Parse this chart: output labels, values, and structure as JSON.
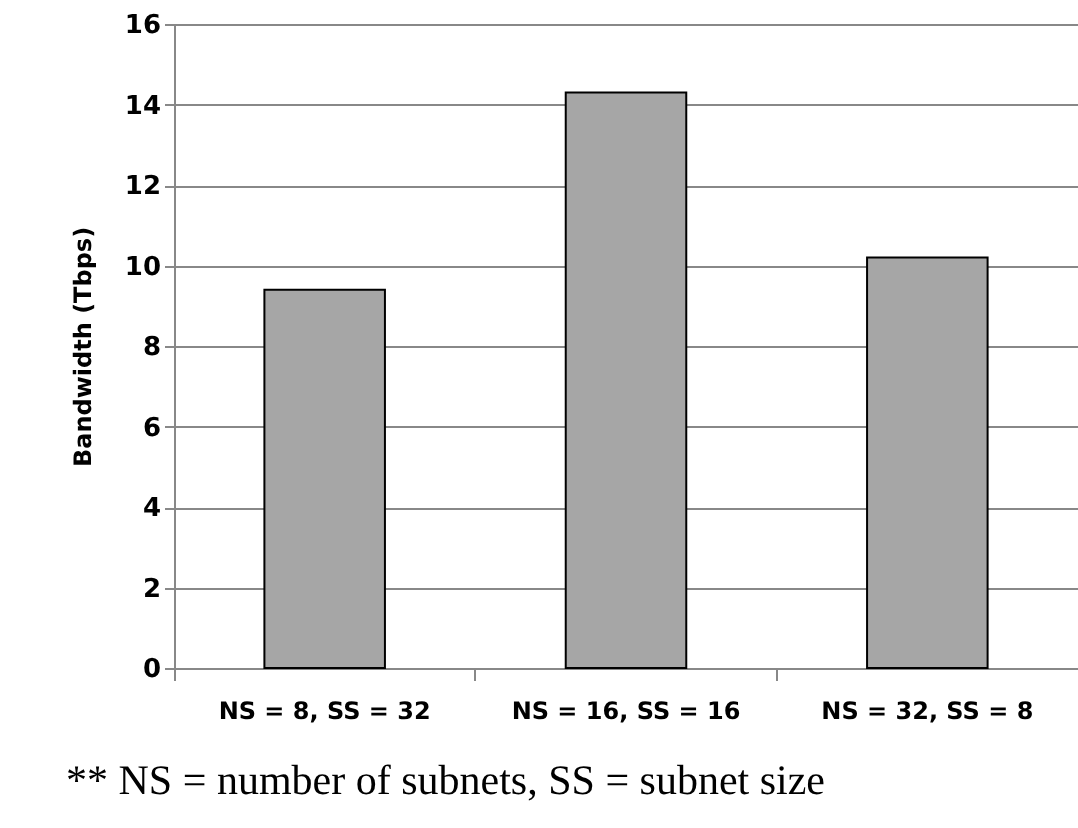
{
  "chart_data": {
    "type": "bar",
    "ylabel": "Bandwidth (Tbps)",
    "categories": [
      "NS = 8,  SS = 32",
      "NS = 16,  SS = 16",
      "NS = 32,  SS = 8"
    ],
    "values": [
      9.4,
      14.3,
      10.2
    ],
    "color": "#a6a6a6",
    "ylim": [
      0,
      16
    ],
    "yticks": [
      0,
      2,
      4,
      6,
      8,
      10,
      12,
      14,
      16
    ],
    "grid": "y",
    "annotations": [
      "** NS = number of subnets, SS = subnet size"
    ]
  }
}
